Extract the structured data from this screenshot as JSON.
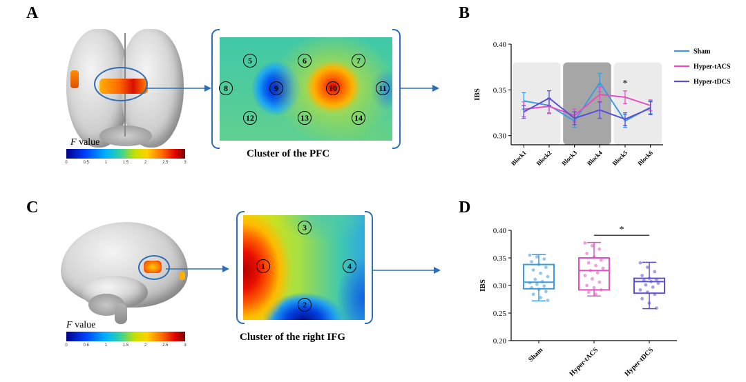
{
  "panels": {
    "a": {
      "letter": "A",
      "fvalue_label": "F",
      "fvalue_suffix": " value",
      "colorbar_ticks": [
        "0",
        "0.5",
        "1",
        "1.5",
        "2",
        "2.5",
        "3"
      ],
      "caption": "Cluster of the PFC",
      "channels": [
        "5",
        "6",
        "7",
        "8",
        "9",
        "10",
        "11",
        "12",
        "13",
        "14"
      ]
    },
    "b": {
      "letter": "B"
    },
    "c": {
      "letter": "C",
      "fvalue_label": "F",
      "fvalue_suffix": " value",
      "colorbar_ticks": [
        "0",
        "0.5",
        "1",
        "1.5",
        "2",
        "2.5",
        "3"
      ],
      "caption": "Cluster of the right IFG",
      "channels": [
        "1",
        "2",
        "3",
        "4"
      ]
    },
    "d": {
      "letter": "D"
    }
  },
  "chart_data": [
    {
      "type": "line",
      "panel": "B",
      "title": "",
      "xlabel": "",
      "ylabel": "IBS",
      "categories": [
        "Block1",
        "Block2",
        "Block3",
        "Block4",
        "Block5",
        "Block6"
      ],
      "ylim": [
        0.29,
        0.4
      ],
      "yticks": [
        "0.40",
        "0.35",
        "0.30"
      ],
      "ytick_values": [
        0.4,
        0.35,
        0.3
      ],
      "series": [
        {
          "name": "Sham",
          "color": "#3b9be0",
          "values": [
            0.338,
            0.333,
            0.316,
            0.358,
            0.316,
            0.331
          ],
          "errors": [
            0.009,
            0.008,
            0.007,
            0.01,
            0.007,
            0.007
          ]
        },
        {
          "name": "Hyper-tACS",
          "color": "#e34fc0",
          "values": [
            0.329,
            0.332,
            0.322,
            0.345,
            0.342,
            0.333
          ],
          "errors": [
            0.008,
            0.008,
            0.007,
            0.008,
            0.007,
            0.006
          ]
        },
        {
          "name": "Hyper-tDCS",
          "color": "#5a4fd6",
          "values": [
            0.326,
            0.341,
            0.319,
            0.328,
            0.318,
            0.33
          ],
          "errors": [
            0.007,
            0.008,
            0.007,
            0.009,
            0.007,
            0.007
          ]
        }
      ],
      "shaded_blocks": [
        {
          "from": "Block1",
          "to": "Block2",
          "color": "#ebebeb"
        },
        {
          "from": "Block3",
          "to": "Block4",
          "color": "#a6a6a6"
        },
        {
          "from": "Block5",
          "to": "Block6",
          "color": "#ebebeb"
        }
      ],
      "annotations": [
        {
          "category": "Block5",
          "text": "*"
        }
      ],
      "legend": "top-right"
    },
    {
      "type": "box",
      "panel": "D",
      "title": "",
      "xlabel": "",
      "ylabel": "IBS",
      "categories": [
        "Sham",
        "Hyper-tACS",
        "Hyper-tDCS"
      ],
      "ylim": [
        0.2,
        0.4
      ],
      "yticks": [
        "0.40",
        "0.35",
        "0.30",
        "0.25",
        "0.20"
      ],
      "ytick_values": [
        0.4,
        0.35,
        0.3,
        0.25,
        0.2
      ],
      "boxes": [
        {
          "name": "Sham",
          "color": "#3b9be0",
          "min": 0.272,
          "q1": 0.294,
          "median": 0.306,
          "q3": 0.338,
          "max": 0.356,
          "points": [
            0.355,
            0.352,
            0.348,
            0.343,
            0.338,
            0.333,
            0.328,
            0.322,
            0.316,
            0.311,
            0.307,
            0.305,
            0.302,
            0.299,
            0.296,
            0.293,
            0.289,
            0.284,
            0.278,
            0.273
          ]
        },
        {
          "name": "Hyper-tACS",
          "color": "#e34fc0",
          "min": 0.281,
          "q1": 0.292,
          "median": 0.327,
          "q3": 0.35,
          "max": 0.378,
          "points": [
            0.377,
            0.372,
            0.366,
            0.358,
            0.352,
            0.346,
            0.341,
            0.336,
            0.331,
            0.327,
            0.323,
            0.318,
            0.312,
            0.306,
            0.3,
            0.296,
            0.292,
            0.288,
            0.284
          ]
        },
        {
          "name": "Hyper-tDCS",
          "color": "#5a4fd6",
          "min": 0.258,
          "q1": 0.286,
          "median": 0.307,
          "q3": 0.313,
          "max": 0.342,
          "points": [
            0.341,
            0.333,
            0.325,
            0.318,
            0.313,
            0.311,
            0.309,
            0.307,
            0.304,
            0.301,
            0.297,
            0.292,
            0.288,
            0.284,
            0.276,
            0.268,
            0.259
          ]
        }
      ],
      "annotations": [
        {
          "from": "Hyper-tACS",
          "to": "Hyper-tDCS",
          "text": "*"
        }
      ]
    }
  ]
}
